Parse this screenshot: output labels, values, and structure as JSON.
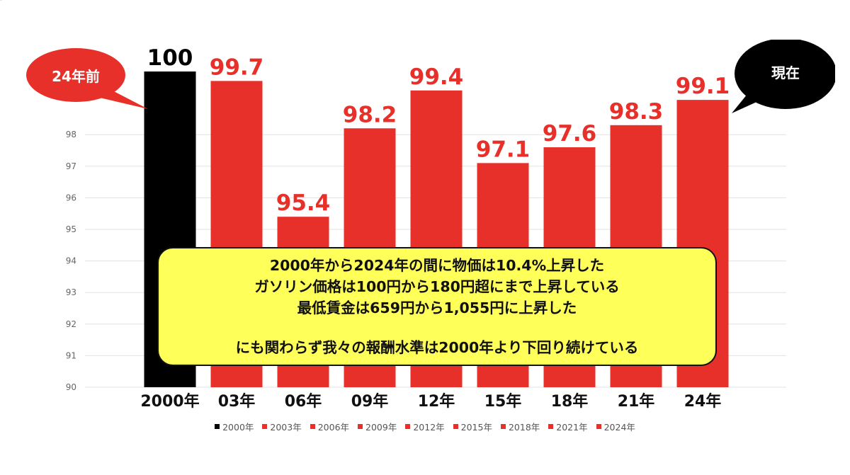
{
  "chart_data": {
    "type": "bar",
    "categories": [
      "2000年",
      "03年",
      "06年",
      "09年",
      "12年",
      "15年",
      "18年",
      "21年",
      "24年"
    ],
    "values": [
      100,
      99.7,
      95.4,
      98.2,
      99.4,
      97.1,
      97.6,
      98.3,
      99.1
    ],
    "value_labels": [
      "100",
      "99.7",
      "95.4",
      "98.2",
      "99.4",
      "97.1",
      "97.6",
      "98.3",
      "99.1"
    ],
    "ylim": [
      90,
      100
    ],
    "yticks": [
      "90",
      "91",
      "92",
      "93",
      "94",
      "95",
      "96",
      "97",
      "98"
    ],
    "grid": true,
    "colors": [
      "#000000",
      "#e8302a",
      "#e8302a",
      "#e8302a",
      "#e8302a",
      "#e8302a",
      "#e8302a",
      "#e8302a",
      "#e8302a"
    ],
    "legend": {
      "placement": "bottom",
      "entries": [
        "2000年",
        "2003年",
        "2006年",
        "2009年",
        "2012年",
        "2015年",
        "2018年",
        "2021年",
        "2024年"
      ]
    }
  },
  "bubbles": {
    "left": {
      "label": "24年前",
      "color": "#e8302a",
      "text_color": "#ffffff"
    },
    "right": {
      "label": "現在",
      "color": "#000000",
      "text_color": "#ffffff"
    }
  },
  "callout": {
    "lines": [
      "2000年から2024年の間に物価は10.4%上昇した",
      "ガソリン価格は100円から180円超にまで上昇している",
      "最低賃金は659円から1,055円に上昇した"
    ],
    "conclusion": "にも関わらず我々の報酬水準は2000年より下回り続けている",
    "background": "#ffff5a"
  }
}
